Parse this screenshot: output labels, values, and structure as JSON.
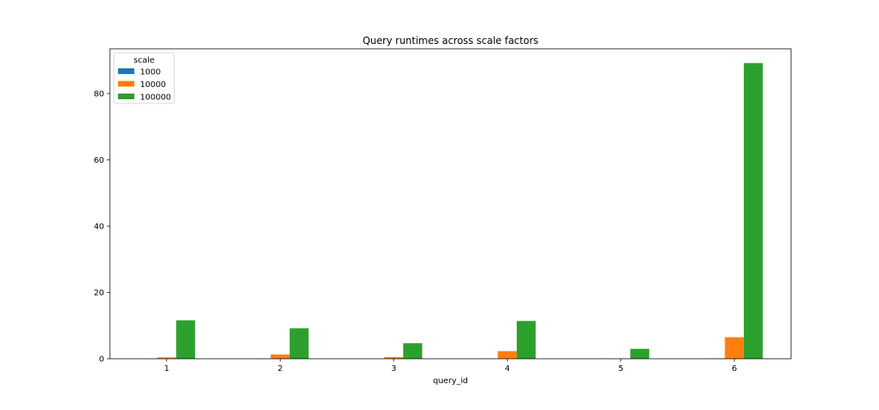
{
  "chart_data": {
    "type": "bar",
    "title": "Query runtimes across scale factors",
    "xlabel": "query_id",
    "ylabel": "",
    "categories": [
      "1",
      "2",
      "3",
      "4",
      "5",
      "6"
    ],
    "yticks": [
      "0",
      "20",
      "40",
      "60",
      "80"
    ],
    "ylim": [
      0,
      93.5
    ],
    "grid": false,
    "legend": {
      "title": "scale",
      "placement": "top-left"
    },
    "series": [
      {
        "name": "1000",
        "color": "#1f77b4",
        "values": [
          0.03,
          0.05,
          0.02,
          0.08,
          0.01,
          0.12
        ]
      },
      {
        "name": "10000",
        "color": "#ff7f0e",
        "values": [
          0.4,
          1.3,
          0.5,
          2.3,
          0.1,
          6.5
        ]
      },
      {
        "name": "100000",
        "color": "#2ca02c",
        "values": [
          11.6,
          9.2,
          4.7,
          11.4,
          3.0,
          89.2
        ]
      }
    ]
  }
}
